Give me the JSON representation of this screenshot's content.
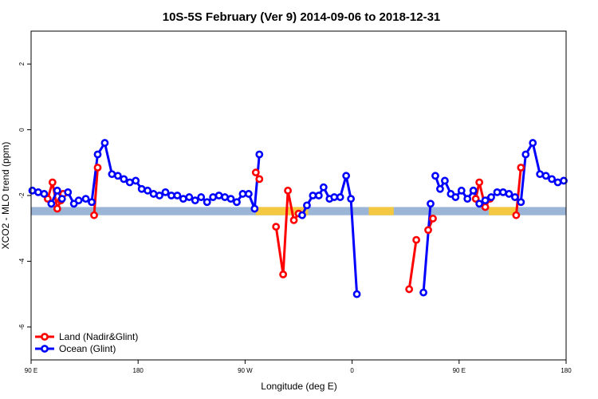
{
  "chart_data": {
    "type": "line",
    "title": "10S-5S February (Ver 9)   2014-09-06 to 2018-12-31",
    "xlabel": "Longitude (deg E)",
    "ylabel": "XCO2 - MLO trend (ppm)",
    "xlim": [
      90,
      540
    ],
    "ylim": [
      -7,
      3
    ],
    "x_ticks": [
      {
        "value": 90,
        "label": "90 E"
      },
      {
        "value": 180,
        "label": "180"
      },
      {
        "value": 270,
        "label": "90 W"
      },
      {
        "value": 360,
        "label": "0"
      },
      {
        "value": 450,
        "label": "90 E"
      },
      {
        "value": 540,
        "label": "180"
      }
    ],
    "y_ticks": [
      {
        "value": 2,
        "label": "2"
      },
      {
        "value": 0,
        "label": "0"
      },
      {
        "value": -2,
        "label": "-2"
      },
      {
        "value": -4,
        "label": "-4"
      },
      {
        "value": -6,
        "label": "-6"
      }
    ],
    "band": {
      "y_low": -2.6,
      "y_high": -2.35,
      "color": "#9bb5d6",
      "land_color": "#f5c842"
    },
    "land_segments": [
      [
        279,
        323
      ],
      [
        374,
        395
      ],
      [
        475,
        498
      ]
    ],
    "grid": false,
    "legend_position": "bottom-left",
    "series": [
      {
        "name": "Land (Nadir&Glint)",
        "color": "#ff0000",
        "segments": [
          [
            [
              104,
              -2.1
            ],
            [
              108,
              -1.6
            ],
            [
              112,
              -2.4
            ],
            [
              115,
              -2.15
            ],
            [
              117,
              -1.95
            ]
          ],
          [
            [
              143,
              -2.6
            ],
            [
              146,
              -1.15
            ]
          ],
          [
            [
              279,
              -1.3
            ],
            [
              282,
              -1.5
            ]
          ],
          [
            [
              296,
              -2.95
            ],
            [
              302,
              -4.4
            ],
            [
              306,
              -1.85
            ],
            [
              311,
              -2.75
            ],
            [
              315,
              -2.55
            ]
          ],
          [
            [
              408,
              -4.85
            ],
            [
              414,
              -3.35
            ]
          ],
          [
            [
              424,
              -3.05
            ],
            [
              428,
              -2.7
            ]
          ],
          [
            [
              464,
              -2.1
            ],
            [
              467,
              -1.6
            ],
            [
              472,
              -2.35
            ],
            [
              476,
              -2.1
            ]
          ],
          [
            [
              498,
              -2.6
            ],
            [
              502,
              -1.15
            ]
          ]
        ]
      },
      {
        "name": "Ocean (Glint)",
        "color": "#0000ff",
        "segments": [
          [
            [
              91,
              -1.85
            ],
            [
              96,
              -1.9
            ],
            [
              101,
              -1.95
            ],
            [
              107,
              -2.25
            ],
            [
              112,
              -1.85
            ],
            [
              116,
              -2.1
            ],
            [
              121,
              -1.9
            ],
            [
              126,
              -2.25
            ],
            [
              130,
              -2.15
            ],
            [
              136,
              -2.1
            ],
            [
              141,
              -2.2
            ],
            [
              146,
              -0.75
            ],
            [
              152,
              -0.4
            ],
            [
              158,
              -1.35
            ],
            [
              163,
              -1.4
            ],
            [
              168,
              -1.5
            ],
            [
              173,
              -1.6
            ],
            [
              178,
              -1.55
            ],
            [
              183,
              -1.8
            ],
            [
              188,
              -1.85
            ],
            [
              193,
              -1.95
            ],
            [
              198,
              -2.0
            ],
            [
              203,
              -1.9
            ],
            [
              208,
              -2.0
            ],
            [
              213,
              -2.0
            ],
            [
              218,
              -2.1
            ],
            [
              223,
              -2.05
            ],
            [
              228,
              -2.15
            ],
            [
              233,
              -2.05
            ],
            [
              238,
              -2.2
            ],
            [
              243,
              -2.05
            ],
            [
              248,
              -2.0
            ],
            [
              253,
              -2.05
            ],
            [
              258,
              -2.1
            ],
            [
              263,
              -2.2
            ],
            [
              268,
              -1.95
            ],
            [
              273,
              -1.95
            ],
            [
              278,
              -2.4
            ],
            [
              282,
              -0.75
            ]
          ],
          [
            [
              318,
              -2.6
            ],
            [
              322,
              -2.3
            ],
            [
              327,
              -2.0
            ],
            [
              332,
              -2.0
            ],
            [
              336,
              -1.75
            ],
            [
              341,
              -2.1
            ],
            [
              345,
              -2.05
            ],
            [
              350,
              -2.05
            ],
            [
              355,
              -1.4
            ],
            [
              359,
              -2.1
            ],
            [
              364,
              -5.0
            ]
          ],
          [
            [
              420,
              -4.95
            ],
            [
              426,
              -2.25
            ]
          ],
          [
            [
              430,
              -1.4
            ],
            [
              434,
              -1.8
            ],
            [
              438,
              -1.55
            ],
            [
              443,
              -1.95
            ],
            [
              447,
              -2.05
            ],
            [
              452,
              -1.85
            ],
            [
              457,
              -2.1
            ],
            [
              462,
              -1.85
            ]
          ],
          [
            [
              462,
              -1.85
            ],
            [
              467,
              -2.25
            ],
            [
              472,
              -2.15
            ],
            [
              477,
              -2.05
            ],
            [
              482,
              -1.9
            ],
            [
              487,
              -1.9
            ],
            [
              492,
              -1.95
            ],
            [
              497,
              -2.05
            ],
            [
              502,
              -2.2
            ],
            [
              506,
              -0.75
            ],
            [
              512,
              -0.4
            ],
            [
              518,
              -1.35
            ],
            [
              523,
              -1.4
            ],
            [
              528,
              -1.5
            ],
            [
              533,
              -1.6
            ],
            [
              538,
              -1.55
            ]
          ]
        ]
      }
    ]
  }
}
